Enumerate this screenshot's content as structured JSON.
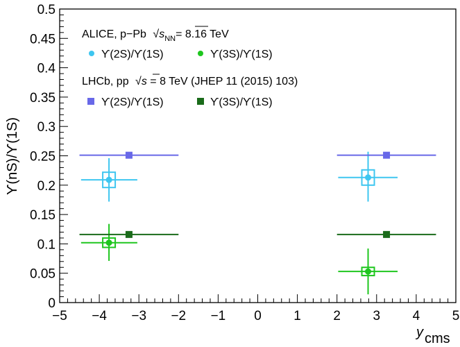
{
  "chart_data": {
    "type": "scatter",
    "xlabel": "y",
    "xlabel_sub": "cms",
    "ylabel": "ϒ(nS)/ϒ(1S)",
    "xlim": [
      -5,
      5
    ],
    "ylim": [
      0,
      0.5
    ],
    "x_ticks": [
      -5,
      -4,
      -3,
      -2,
      -1,
      0,
      1,
      2,
      3,
      4,
      5
    ],
    "y_ticks": [
      0,
      0.05,
      0.1,
      0.15,
      0.2,
      0.25,
      0.3,
      0.35,
      0.4,
      0.45,
      0.5
    ],
    "x_tick_labels": [
      "−5",
      "−4",
      "−3",
      "−2",
      "−1",
      "0",
      "1",
      "2",
      "3",
      "4",
      "5"
    ],
    "y_tick_labels": [
      "0",
      "0.05",
      "0.1",
      "0.15",
      "0.2",
      "0.25",
      "0.3",
      "0.35",
      "0.4",
      "0.45",
      "0.5"
    ],
    "legend": {
      "placement": "top-left",
      "group1_header": "ALICE, p−Pb √s_NN = 8.16 TeV",
      "group1_prefix": "ALICE, p−Pb",
      "group1_sqrt_s": "s",
      "group1_sqrt_sub": "NN",
      "group1_suffix": "= 8.16 TeV",
      "group2_header": "LHCb, pp √s = 8 TeV (JHEP 11 (2015) 103)",
      "group2_prefix": "LHCb, pp",
      "group2_sqrt_s": "s",
      "group2_suffix": "= 8 TeV (JHEP 11 (2015) 103)"
    },
    "series": [
      {
        "name": "ϒ(2S)/ϒ(1S)",
        "group": "ALICE",
        "color": "#3ec6f0",
        "marker": "circle",
        "points": [
          {
            "x": -3.755,
            "y": 0.209,
            "xlo": -4.46,
            "xhi": -3.04,
            "stat_lo": 0.172,
            "stat_hi": 0.246,
            "syst_half": 0.013
          },
          {
            "x": 2.785,
            "y": 0.213,
            "xlo": 2.03,
            "xhi": 3.53,
            "stat_lo": 0.172,
            "stat_hi": 0.257,
            "syst_half": 0.013
          }
        ]
      },
      {
        "name": "ϒ(3S)/ϒ(1S)",
        "group": "ALICE",
        "color": "#1ec61e",
        "marker": "circle",
        "points": [
          {
            "x": -3.755,
            "y": 0.102,
            "xlo": -4.46,
            "xhi": -3.04,
            "stat_lo": 0.071,
            "stat_hi": 0.134,
            "syst_half": 0.008
          },
          {
            "x": 2.785,
            "y": 0.053,
            "xlo": 2.03,
            "xhi": 3.53,
            "stat_lo": 0.014,
            "stat_hi": 0.092,
            "syst_half": 0.007
          }
        ]
      },
      {
        "name": "ϒ(2S)/ϒ(1S)",
        "group": "LHCb",
        "color": "#6868e8",
        "marker": "square",
        "points": [
          {
            "x": -3.25,
            "y": 0.251,
            "xlo": -4.5,
            "xhi": -2.0
          },
          {
            "x": 3.25,
            "y": 0.251,
            "xlo": 2.0,
            "xhi": 4.5
          }
        ]
      },
      {
        "name": "ϒ(3S)/ϒ(1S)",
        "group": "LHCb",
        "color": "#1a6b1a",
        "marker": "square",
        "points": [
          {
            "x": -3.25,
            "y": 0.116,
            "xlo": -4.5,
            "xhi": -2.0
          },
          {
            "x": 3.25,
            "y": 0.116,
            "xlo": 2.0,
            "xhi": 4.5
          }
        ]
      }
    ]
  }
}
